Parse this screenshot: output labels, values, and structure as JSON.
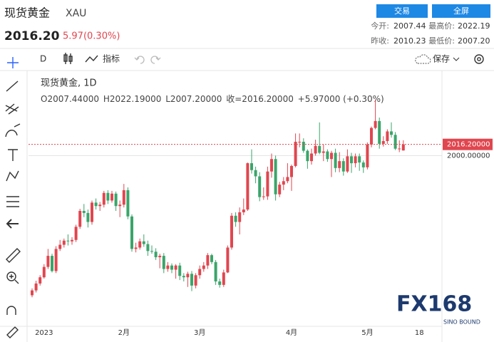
{
  "header": {
    "title": "现货黄金",
    "symbol": "XAU",
    "price": "2016.20",
    "change": "5.97(0.30%)",
    "buttons": [
      "交易",
      "全屏"
    ],
    "stats": [
      [
        "今开:",
        "2007.44",
        "最高价:",
        "2022.19"
      ],
      [
        "昨收:",
        "2010.23",
        "最低价:",
        "2007.20"
      ]
    ]
  },
  "toolbar": {
    "interval": "D",
    "indicators": "指标",
    "save": "保存"
  },
  "watermark": {
    "logo": "FX168",
    "sub": "SINO BOUND"
  },
  "chart_data": {
    "type": "candlestick",
    "legend_title": "现货黄金, 1D",
    "ohlc_legend": [
      "O2007.44000",
      "H2022.19000",
      "L2007.20000",
      "收=2016.20000",
      "+5.97000 (+0.30%)"
    ],
    "last_price_label": "2016.20000",
    "up_color": "#e0464f",
    "down_color": "#3aa56a",
    "ylim": [
      1751,
      2122
    ],
    "yticks": [
      {
        "value": 2000,
        "label": "2000.00000"
      }
    ],
    "categories": [
      null,
      null,
      null,
      "2023",
      null,
      null,
      null,
      null,
      null,
      null,
      null,
      null,
      null,
      null,
      null,
      null,
      null,
      null,
      null,
      null,
      null,
      null,
      null,
      "2月",
      null,
      null,
      null,
      null,
      null,
      null,
      null,
      null,
      null,
      null,
      null,
      null,
      null,
      null,
      null,
      null,
      null,
      null,
      "3月",
      null,
      null,
      null,
      null,
      null,
      null,
      null,
      null,
      null,
      null,
      null,
      null,
      null,
      null,
      null,
      null,
      null,
      null,
      null,
      null,
      null,
      null,
      "4月",
      null,
      null,
      null,
      null,
      null,
      null,
      null,
      null,
      null,
      null,
      null,
      null,
      null,
      null,
      null,
      null,
      null,
      null,
      "5月",
      null,
      null,
      null,
      null,
      null,
      null,
      null,
      null,
      null,
      null,
      null,
      null,
      "18"
    ],
    "open": [
      1798,
      1805,
      1815,
      1824,
      1839,
      1855,
      1833,
      1865,
      1871,
      1877,
      1876,
      1878,
      1897,
      1920,
      1917,
      1904,
      1932,
      1927,
      1929,
      1946,
      1935,
      1945,
      1927,
      1929,
      1950,
      1912,
      1865,
      1867,
      1876,
      1872,
      1862,
      1861,
      1853,
      1855,
      1836,
      1841,
      1835,
      1841,
      1826,
      1824,
      1829,
      1812,
      1827,
      1836,
      1841,
      1856,
      1846,
      1818,
      1813,
      1831,
      1867,
      1913,
      1904,
      1918,
      1922,
      1989,
      1979,
      1970,
      1940,
      1941,
      1977,
      1995,
      1944,
      1958,
      1963,
      1969,
      1985,
      2020,
      2020,
      2007,
      1992,
      2003,
      2014,
      2004,
      2006,
      1995,
      2004,
      1982,
      1992,
      1977,
      1999,
      1989,
      1999,
      1990,
      1983,
      2016,
      2040,
      2050,
      2017,
      2021,
      2035,
      2030,
      2010,
      2007.44,
      null,
      null,
      null,
      null
    ],
    "high": [
      1808,
      1819,
      1827,
      1843,
      1865,
      1858,
      1869,
      1878,
      1880,
      1886,
      1882,
      1900,
      1923,
      1930,
      1922,
      1935,
      1938,
      1933,
      1949,
      1950,
      1949,
      1948,
      1935,
      1959,
      1954,
      1915,
      1874,
      1880,
      1886,
      1877,
      1870,
      1866,
      1858,
      1859,
      1846,
      1844,
      1843,
      1845,
      1830,
      1832,
      1833,
      1830,
      1841,
      1846,
      1859,
      1858,
      1849,
      1822,
      1835,
      1870,
      1917,
      1918,
      1925,
      1938,
      1990,
      2009,
      1984,
      1976,
      1954,
      1984,
      2003,
      2000,
      1962,
      1969,
      1989,
      1987,
      2032,
      2032,
      2025,
      2009,
      2010,
      2023,
      2048,
      2016,
      2009,
      2007,
      2010,
      2005,
      1996,
      2009,
      2004,
      2003,
      2003,
      1993,
      2019,
      2042,
      2081,
      2055,
      2028,
      2038,
      2048,
      2034,
      2022,
      2022.19,
      null,
      null,
      null,
      null
    ],
    "low": [
      1795,
      1802,
      1812,
      1822,
      1836,
      1831,
      1830,
      1862,
      1867,
      1870,
      1871,
      1875,
      1894,
      1911,
      1896,
      1900,
      1922,
      1920,
      1925,
      1930,
      1932,
      1920,
      1911,
      1925,
      1908,
      1861,
      1860,
      1864,
      1868,
      1855,
      1858,
      1849,
      1837,
      1830,
      1832,
      1830,
      1822,
      1820,
      1818,
      1810,
      1804,
      1808,
      1822,
      1832,
      1836,
      1843,
      1813,
      1809,
      1810,
      1830,
      1864,
      1897,
      1886,
      1914,
      1920,
      1974,
      1960,
      1934,
      1936,
      1936,
      1968,
      1935,
      1940,
      1950,
      1960,
      1949,
      1983,
      2012,
      2004,
      1981,
      1987,
      2000,
      2002,
      1992,
      1991,
      1969,
      1976,
      1976,
      1971,
      1975,
      1975,
      1983,
      1978,
      1975,
      1980,
      2012,
      2038,
      2010,
      2013,
      2017,
      2026,
      2008,
      2005,
      2007.2,
      null,
      null,
      null,
      null
    ],
    "close": [
      1805,
      1815,
      1824,
      1839,
      1855,
      1833,
      1865,
      1871,
      1877,
      1876,
      1878,
      1897,
      1920,
      1917,
      1904,
      1932,
      1927,
      1929,
      1946,
      1935,
      1945,
      1927,
      1929,
      1950,
      1912,
      1865,
      1867,
      1876,
      1872,
      1862,
      1861,
      1853,
      1855,
      1836,
      1841,
      1835,
      1841,
      1826,
      1824,
      1829,
      1812,
      1827,
      1836,
      1841,
      1856,
      1846,
      1818,
      1813,
      1831,
      1867,
      1913,
      1904,
      1918,
      1922,
      1989,
      1979,
      1970,
      1940,
      1941,
      1977,
      1995,
      1944,
      1958,
      1963,
      1969,
      1985,
      2020,
      2020,
      2007,
      1992,
      2003,
      2014,
      2004,
      2006,
      1995,
      2004,
      1982,
      1992,
      1977,
      1999,
      1989,
      1999,
      1990,
      1983,
      2016,
      2040,
      2050,
      2017,
      2021,
      2035,
      2030,
      2010,
      2010.23,
      2016.2,
      null,
      null,
      null,
      null
    ]
  }
}
